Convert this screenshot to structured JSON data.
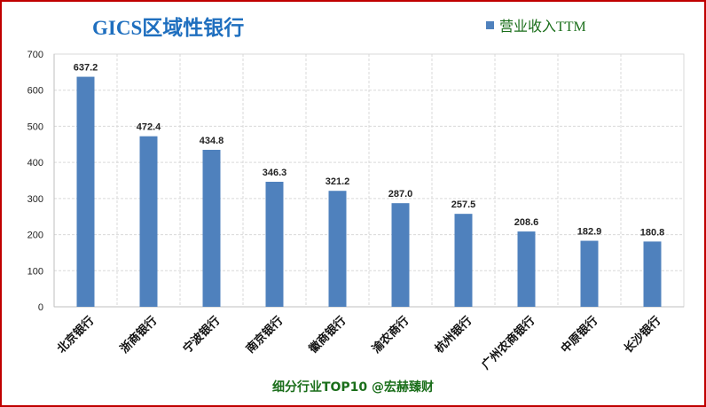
{
  "chart_data": {
    "type": "bar",
    "title": "GICS区域性银行",
    "legend": "营业收入TTM",
    "legend_position": "top-right",
    "grid": true,
    "categories": [
      "北京银行",
      "浙商银行",
      "宁波银行",
      "南京银行",
      "徽商银行",
      "渝农商行",
      "杭州银行",
      "广州农商银行",
      "中原银行",
      "长沙银行"
    ],
    "series": [
      {
        "name": "营业收入TTM",
        "values": [
          637.2,
          472.4,
          434.8,
          346.3,
          321.2,
          287.0,
          257.5,
          208.6,
          182.9,
          180.8
        ]
      }
    ],
    "value_labels": [
      "637.2",
      "472.4",
      "434.8",
      "346.3",
      "321.2",
      "287.0",
      "257.5",
      "208.6",
      "182.9",
      "180.8"
    ],
    "ylim": [
      0,
      700
    ],
    "yticks": [
      0,
      100,
      200,
      300,
      400,
      500,
      600,
      700
    ],
    "bar_color": "#4f81bd"
  },
  "footer": "细分行业TOP10 @宏赫臻财"
}
